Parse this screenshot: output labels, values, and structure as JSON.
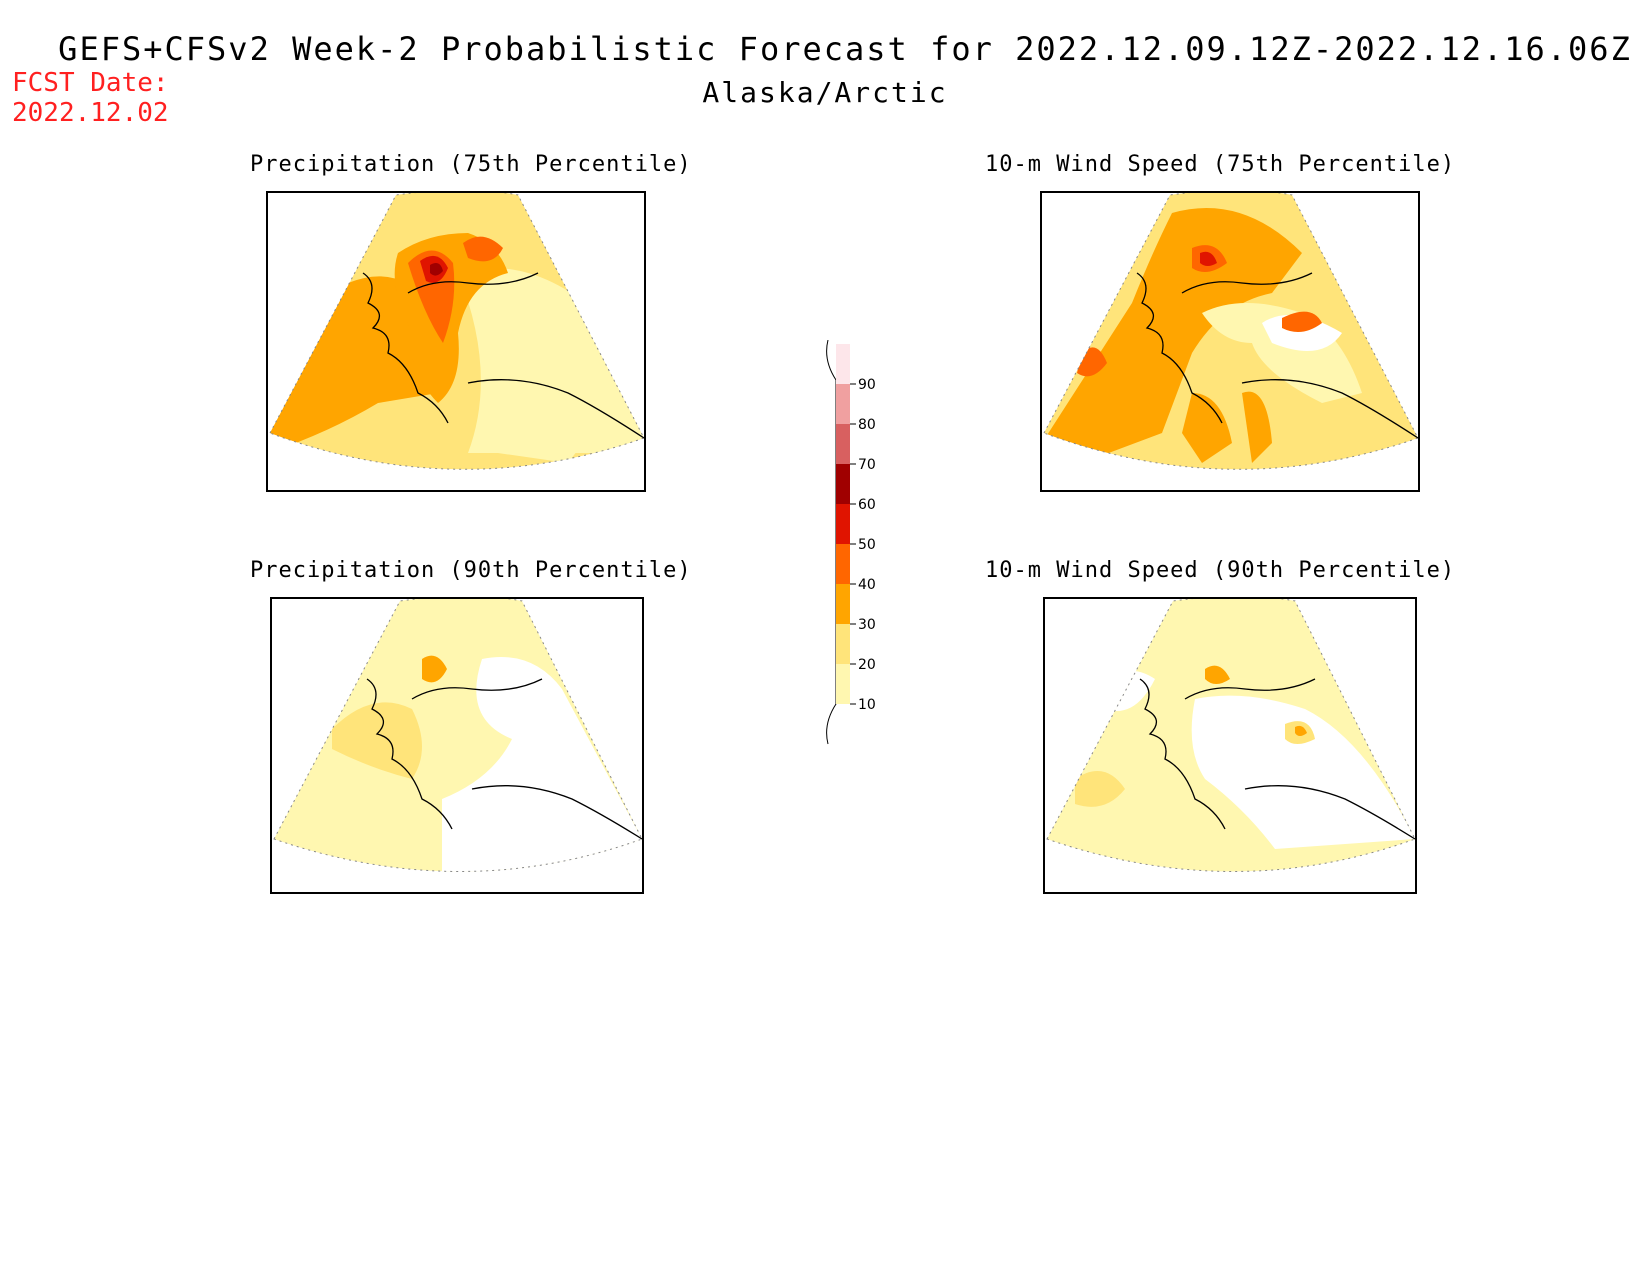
{
  "header": {
    "title": "GEFS+CFSv2 Week-2 Probabilistic Forecast for 2022.12.09.12Z-2022.12.16.06Z",
    "region": "Alaska/Arctic",
    "fcst_label": "FCST Date:",
    "fcst_date": "2022.12.02"
  },
  "panels": [
    {
      "title": "Precipitation (75th Percentile)"
    },
    {
      "title": "10-m Wind Speed (75th Percentile)"
    },
    {
      "title": "Precipitation (90th Percentile)"
    },
    {
      "title": "10-m Wind Speed (90th Percentile)"
    }
  ],
  "colorbar": {
    "levels": [
      "10",
      "20",
      "30",
      "40",
      "50",
      "60",
      "70",
      "80",
      "90"
    ],
    "colors": {
      "c10": "#fff7b0",
      "c20": "#ffe47a",
      "c30": "#ffa500",
      "c40": "#ff6600",
      "c50": "#e01400",
      "c60": "#a00000",
      "c70": "#d86060",
      "c80": "#f0a0a0",
      "c90": "#fde6ea"
    }
  }
}
